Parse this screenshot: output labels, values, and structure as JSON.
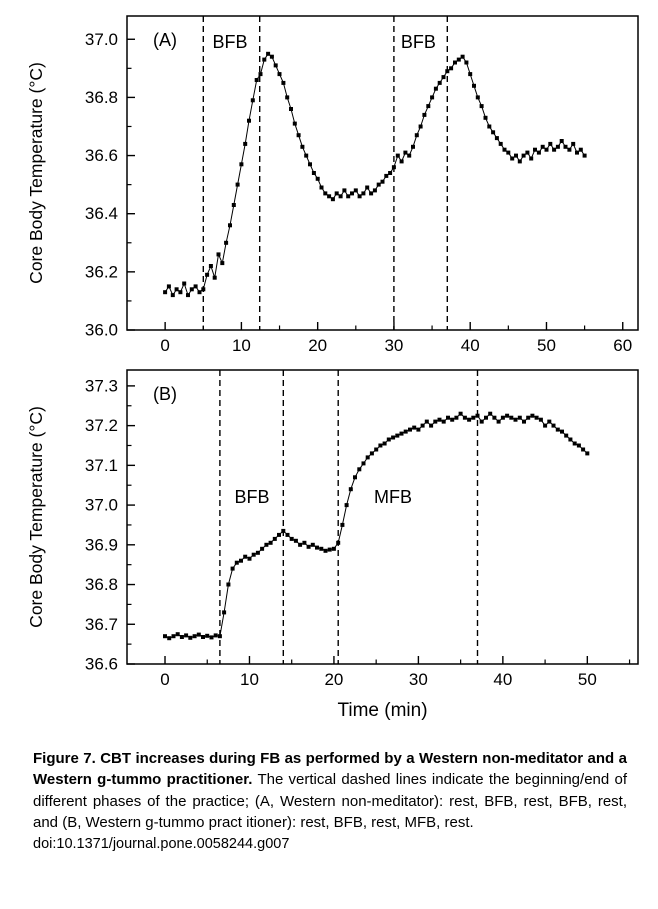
{
  "caption": {
    "bold": "Figure 7. CBT increases during FB as performed by a Western non-meditator and a Western g-tummo practitioner.",
    "body": "The vertical dashed lines indicate the beginning/end of different phases of the practice; (A, Western non-meditator): rest, BFB, rest, BFB, rest, and (B, Western g-tummo pract itioner): rest, BFB, rest, MFB, rest.",
    "doi": "doi:10.1371/journal.pone.0058244.g007"
  },
  "chart_data": [
    {
      "type": "scatter",
      "panel_label": "(A)",
      "ylabel": "Core Body Temperature (°C)",
      "xlabel": "",
      "xlim": [
        -5,
        62
      ],
      "ylim": [
        36.0,
        37.08
      ],
      "xticks": [
        0,
        10,
        20,
        30,
        40,
        50,
        60
      ],
      "yticks": [
        36.0,
        36.2,
        36.4,
        36.6,
        36.8,
        37.0
      ],
      "grid": false,
      "legend": null,
      "marker": "square",
      "color": "#000000",
      "phase_lines_x": [
        5,
        12.4,
        30,
        37
      ],
      "annotations": [
        {
          "text": "BFB",
          "x": 8.5,
          "y": 36.99
        },
        {
          "text": "BFB",
          "x": 33.2,
          "y": 36.99
        }
      ],
      "series": {
        "name": "CBT non-meditator",
        "x_start": 0,
        "x_step": 0.5,
        "y": [
          36.13,
          36.15,
          36.12,
          36.14,
          36.13,
          36.16,
          36.12,
          36.14,
          36.15,
          36.13,
          36.14,
          36.19,
          36.22,
          36.18,
          36.26,
          36.23,
          36.3,
          36.36,
          36.43,
          36.5,
          36.57,
          36.64,
          36.72,
          36.79,
          36.86,
          36.88,
          36.93,
          36.95,
          36.94,
          36.91,
          36.88,
          36.85,
          36.8,
          36.76,
          36.71,
          36.67,
          36.63,
          36.6,
          36.57,
          36.54,
          36.52,
          36.49,
          36.47,
          36.46,
          36.45,
          36.47,
          36.46,
          36.48,
          36.46,
          36.47,
          36.48,
          36.46,
          36.47,
          36.49,
          36.47,
          36.48,
          36.5,
          36.51,
          36.53,
          36.54,
          36.56,
          36.6,
          36.58,
          36.61,
          36.6,
          36.63,
          36.67,
          36.7,
          36.74,
          36.77,
          36.8,
          36.83,
          36.85,
          36.87,
          36.89,
          36.9,
          36.92,
          36.93,
          36.94,
          36.92,
          36.88,
          36.84,
          36.8,
          36.77,
          36.73,
          36.7,
          36.68,
          36.66,
          36.64,
          36.62,
          36.61,
          36.59,
          36.6,
          36.58,
          36.6,
          36.61,
          36.59,
          36.62,
          36.61,
          36.63,
          36.62,
          36.64,
          36.62,
          36.63,
          36.65,
          36.63,
          36.62,
          36.64,
          36.61,
          36.62,
          36.6
        ]
      }
    },
    {
      "type": "scatter",
      "panel_label": "(B)",
      "ylabel": "Core Body Temperature (°C)",
      "xlabel": "Time (min)",
      "xlim": [
        -4.5,
        56
      ],
      "ylim": [
        36.6,
        37.34
      ],
      "xticks": [
        0,
        10,
        20,
        30,
        40,
        50
      ],
      "yticks": [
        36.6,
        36.7,
        36.8,
        36.9,
        37.0,
        37.1,
        37.2,
        37.3
      ],
      "grid": false,
      "legend": null,
      "marker": "square",
      "color": "#000000",
      "phase_lines_x": [
        6.5,
        14,
        20.5,
        37
      ],
      "annotations": [
        {
          "text": "BFB",
          "x": 10.3,
          "y": 37.02
        },
        {
          "text": "MFB",
          "x": 27,
          "y": 37.02
        }
      ],
      "series": {
        "name": "CBT g-tummo practitioner",
        "x_start": 0,
        "x_step": 0.5,
        "y": [
          36.67,
          36.665,
          36.67,
          36.675,
          36.668,
          36.672,
          36.666,
          36.67,
          36.674,
          36.668,
          36.671,
          36.667,
          36.672,
          36.67,
          36.73,
          36.8,
          36.84,
          36.855,
          36.86,
          36.87,
          36.865,
          36.875,
          36.88,
          36.89,
          36.9,
          36.905,
          36.915,
          36.925,
          36.935,
          36.925,
          36.915,
          36.91,
          36.9,
          36.905,
          36.895,
          36.9,
          36.893,
          36.89,
          36.885,
          36.888,
          36.89,
          36.905,
          36.95,
          37.0,
          37.04,
          37.07,
          37.09,
          37.105,
          37.12,
          37.13,
          37.14,
          37.15,
          37.155,
          37.165,
          37.17,
          37.175,
          37.18,
          37.185,
          37.19,
          37.195,
          37.19,
          37.2,
          37.21,
          37.2,
          37.21,
          37.215,
          37.21,
          37.22,
          37.215,
          37.22,
          37.23,
          37.22,
          37.215,
          37.22,
          37.225,
          37.21,
          37.22,
          37.23,
          37.22,
          37.21,
          37.22,
          37.225,
          37.22,
          37.215,
          37.22,
          37.21,
          37.22,
          37.225,
          37.22,
          37.215,
          37.2,
          37.21,
          37.2,
          37.19,
          37.185,
          37.175,
          37.165,
          37.155,
          37.15,
          37.14,
          37.13
        ]
      }
    }
  ]
}
